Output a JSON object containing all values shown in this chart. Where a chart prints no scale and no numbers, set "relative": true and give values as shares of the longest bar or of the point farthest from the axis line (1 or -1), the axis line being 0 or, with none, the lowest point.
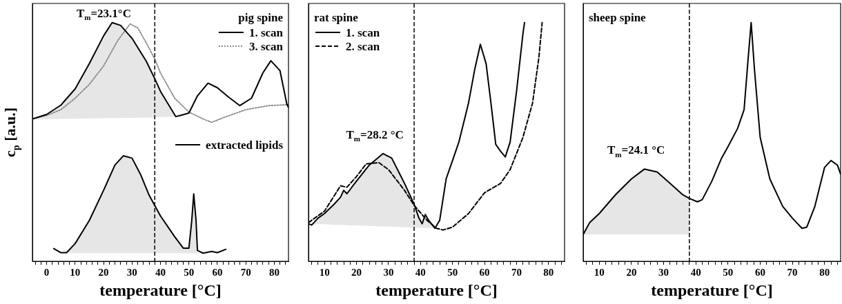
{
  "chart_data": [
    {
      "type": "line",
      "title": "pig spine",
      "ylabel": "c$_{p}$ [a.u.]",
      "xlabel": "temperature [°C]",
      "relative": true,
      "legend": "top right",
      "marker": "none",
      "tick_labels": "x",
      "xlim": [
        -5,
        85
      ],
      "xticks": [
        {
          "value": -4,
          "label": null
        },
        {
          "value": -2,
          "label": null
        },
        0,
        {
          "value": 2,
          "label": null
        },
        {
          "value": 4,
          "label": null
        },
        {
          "value": 6,
          "label": null
        },
        {
          "value": 8,
          "label": null
        },
        10,
        {
          "value": 12,
          "label": null
        },
        {
          "value": 14,
          "label": null
        },
        {
          "value": 16,
          "label": null
        },
        {
          "value": 18,
          "label": null
        },
        20,
        {
          "value": 22,
          "label": null
        },
        {
          "value": 24,
          "label": null
        },
        {
          "value": 26,
          "label": null
        },
        {
          "value": 28,
          "label": null
        },
        30,
        {
          "value": 32,
          "label": null
        },
        {
          "value": 34,
          "label": null
        },
        {
          "value": 36,
          "label": null
        },
        {
          "value": 38,
          "label": null
        },
        40,
        {
          "value": 42,
          "label": null
        },
        {
          "value": 44,
          "label": null
        },
        {
          "value": 46,
          "label": null
        },
        {
          "value": 48,
          "label": null
        },
        50,
        {
          "value": 52,
          "label": null
        },
        {
          "value": 54,
          "label": null
        },
        {
          "value": 56,
          "label": null
        },
        {
          "value": 58,
          "label": null
        },
        60,
        {
          "value": 62,
          "label": null
        },
        {
          "value": 64,
          "label": null
        },
        {
          "value": 66,
          "label": null
        },
        {
          "value": 68,
          "label": null
        },
        70,
        {
          "value": 72,
          "label": null
        },
        {
          "value": 74,
          "label": null
        },
        {
          "value": 76,
          "label": null
        },
        {
          "value": 78,
          "label": null
        },
        80,
        {
          "value": 82,
          "label": null
        },
        {
          "value": 84,
          "label": null
        }
      ],
      "ref_lines": [
        {
          "axis": "x",
          "value": 38,
          "color": "#000000",
          "line_style": "dashed"
        }
      ],
      "annotations": [
        "T$_{m}$=23.1°C"
      ],
      "series": [
        {
          "name": "1. scan",
          "color": "#000000",
          "line_style": "solid",
          "x": [
            -5,
            0,
            5,
            10,
            15,
            20,
            23,
            26,
            30,
            35,
            38,
            40,
            45.4,
            47,
            50,
            53,
            56.7,
            60,
            63.9,
            67.9,
            72,
            76,
            78.8,
            82,
            84.4,
            85
          ],
          "values": [
            0.596,
            0.615,
            0.654,
            0.722,
            0.828,
            0.944,
            1.0,
            0.988,
            0.934,
            0.838,
            0.765,
            0.712,
            0.606,
            0.611,
            0.621,
            0.693,
            0.746,
            0.727,
            0.688,
            0.652,
            0.683,
            0.789,
            0.84,
            0.799,
            0.659,
            0.644
          ],
          "lower": [
            0.594,
            0.595,
            0.596,
            0.597,
            0.598,
            0.599,
            0.6,
            0.6,
            0.601,
            0.602,
            0.603,
            0.604,
            0.606,
            null,
            null,
            null,
            null,
            null,
            null,
            null,
            null,
            null,
            null,
            null,
            null,
            null
          ],
          "upper": [
            0.596,
            0.615,
            0.654,
            0.722,
            0.828,
            0.944,
            1.0,
            0.988,
            0.934,
            0.838,
            0.765,
            0.712,
            0.606,
            null,
            null,
            null,
            null,
            null,
            null,
            null,
            null,
            null,
            null,
            null,
            null,
            null
          ]
        },
        {
          "name": "3. scan",
          "color": "#888888",
          "line_style": "dotted",
          "x": [
            -5,
            0,
            5,
            10,
            15,
            20,
            25,
            29.3,
            32,
            35,
            38,
            40,
            45,
            50,
            55,
            58,
            62,
            70,
            78,
            85
          ],
          "values": [
            0.596,
            0.611,
            0.635,
            0.683,
            0.741,
            0.818,
            0.925,
            0.994,
            0.978,
            0.915,
            0.847,
            0.789,
            0.683,
            0.625,
            0.596,
            0.582,
            0.601,
            0.635,
            0.652,
            0.656
          ]
        },
        {
          "name": "extracted lipids",
          "color": "#000000",
          "line_style": "solid",
          "x": [
            2.5,
            5,
            7,
            10,
            15,
            20,
            24,
            27,
            30,
            33,
            36,
            40,
            45,
            48,
            50,
            51,
            51.7,
            52.5,
            53,
            55,
            58,
            60,
            63
          ],
          "values": [
            0.053,
            0.036,
            0.036,
            0.074,
            0.171,
            0.297,
            0.403,
            0.442,
            0.432,
            0.364,
            0.277,
            0.19,
            0.103,
            0.055,
            0.055,
            0.171,
            0.282,
            0.171,
            0.045,
            0.034,
            0.041,
            0.036,
            0.05
          ],
          "lower": [
            null,
            0.034,
            0.034,
            0.034,
            0.034,
            0.034,
            0.034,
            0.034,
            0.034,
            0.034,
            0.034,
            0.034,
            0.034,
            0.034,
            0.034,
            0.034,
            0.034,
            0.034,
            0.034,
            null,
            null,
            null,
            null
          ],
          "upper": [
            null,
            0.036,
            0.036,
            0.074,
            0.171,
            0.297,
            0.403,
            0.442,
            0.432,
            0.364,
            0.277,
            0.19,
            0.103,
            0.055,
            0.055,
            0.171,
            0.282,
            0.171,
            0.045,
            null,
            null,
            null,
            null
          ]
        }
      ]
    },
    {
      "type": "line",
      "title": "rat spine",
      "xlabel": "temperature [°C]",
      "relative": true,
      "legend": "top left",
      "marker": "none",
      "tick_labels": "x",
      "xlim": [
        5,
        85
      ],
      "xticks": [
        {
          "value": 6,
          "label": null
        },
        {
          "value": 8,
          "label": null
        },
        10,
        {
          "value": 12,
          "label": null
        },
        {
          "value": 14,
          "label": null
        },
        {
          "value": 16,
          "label": null
        },
        {
          "value": 18,
          "label": null
        },
        20,
        {
          "value": 22,
          "label": null
        },
        {
          "value": 24,
          "label": null
        },
        {
          "value": 26,
          "label": null
        },
        {
          "value": 28,
          "label": null
        },
        30,
        {
          "value": 32,
          "label": null
        },
        {
          "value": 34,
          "label": null
        },
        {
          "value": 36,
          "label": null
        },
        {
          "value": 38,
          "label": null
        },
        40,
        {
          "value": 42,
          "label": null
        },
        {
          "value": 44,
          "label": null
        },
        {
          "value": 46,
          "label": null
        },
        {
          "value": 48,
          "label": null
        },
        50,
        {
          "value": 52,
          "label": null
        },
        {
          "value": 54,
          "label": null
        },
        {
          "value": 56,
          "label": null
        },
        {
          "value": 58,
          "label": null
        },
        60,
        {
          "value": 62,
          "label": null
        },
        {
          "value": 64,
          "label": null
        },
        {
          "value": 66,
          "label": null
        },
        {
          "value": 68,
          "label": null
        },
        70,
        {
          "value": 72,
          "label": null
        },
        {
          "value": 74,
          "label": null
        },
        {
          "value": 76,
          "label": null
        },
        {
          "value": 78,
          "label": null
        },
        80,
        {
          "value": 82,
          "label": null
        },
        {
          "value": 84,
          "label": null
        }
      ],
      "ref_lines": [
        {
          "axis": "x",
          "value": 38,
          "color": "#000000",
          "line_style": "dashed"
        }
      ],
      "annotations": [
        "T$_{m}$=28.2 °C"
      ],
      "series": [
        {
          "name": "1. scan",
          "color": "#000000",
          "line_style": "solid",
          "x": [
            5,
            6,
            8,
            10,
            13,
            15,
            16,
            17,
            20,
            24,
            28.3,
            31,
            35,
            38,
            39.5,
            40.5,
            41.5,
            42.5,
            44.5,
            46,
            48,
            50,
            52,
            55,
            57,
            58.7,
            60.5,
            62,
            63.5,
            65,
            66.5,
            68,
            70,
            72,
            72.5
          ],
          "values": [
            0.157,
            0.152,
            0.181,
            0.2,
            0.239,
            0.268,
            0.297,
            0.283,
            0.336,
            0.403,
            0.451,
            0.432,
            0.326,
            0.239,
            0.181,
            0.157,
            0.196,
            0.172,
            0.138,
            0.172,
            0.345,
            0.422,
            0.5,
            0.663,
            0.808,
            0.909,
            0.827,
            0.663,
            0.49,
            0.461,
            0.437,
            0.5,
            0.712,
            0.953,
            1.0
          ],
          "lower": [
            0.157,
            0.152,
            0.156,
            0.155,
            0.153,
            0.152,
            0.152,
            0.151,
            0.15,
            0.148,
            0.146,
            0.145,
            0.143,
            0.141,
            0.14,
            0.14,
            0.139,
            0.139,
            0.138,
            null,
            null,
            null,
            null,
            null,
            null,
            null,
            null,
            null,
            null,
            null,
            null,
            null,
            null,
            null,
            null
          ],
          "upper": [
            0.157,
            0.152,
            0.181,
            0.2,
            0.239,
            0.268,
            0.297,
            0.283,
            0.336,
            0.403,
            0.451,
            0.432,
            0.326,
            0.239,
            0.181,
            0.157,
            0.196,
            0.172,
            0.138,
            null,
            null,
            null,
            null,
            null,
            null,
            null,
            null,
            null,
            null,
            null,
            null,
            null,
            null,
            null,
            null
          ]
        },
        {
          "name": "2. scan",
          "color": "#000000",
          "line_style": "dashed",
          "x": [
            5,
            10,
            15,
            17,
            20,
            23,
            27,
            30,
            35,
            38,
            42,
            45,
            47,
            50,
            55,
            60,
            65,
            68,
            72,
            75,
            77,
            78
          ],
          "values": [
            0.162,
            0.21,
            0.316,
            0.31,
            0.355,
            0.408,
            0.413,
            0.384,
            0.297,
            0.234,
            0.172,
            0.138,
            0.131,
            0.143,
            0.2,
            0.287,
            0.326,
            0.384,
            0.519,
            0.663,
            0.856,
            1.0
          ]
        }
      ]
    },
    {
      "type": "line",
      "title": "sheep spine",
      "xlabel": "temperature [°C]",
      "relative": true,
      "marker": "none",
      "tick_labels": "x",
      "xlim": [
        5,
        85
      ],
      "xticks": [
        {
          "value": 6,
          "label": null
        },
        {
          "value": 8,
          "label": null
        },
        10,
        {
          "value": 12,
          "label": null
        },
        {
          "value": 14,
          "label": null
        },
        {
          "value": 16,
          "label": null
        },
        {
          "value": 18,
          "label": null
        },
        20,
        {
          "value": 22,
          "label": null
        },
        {
          "value": 24,
          "label": null
        },
        {
          "value": 26,
          "label": null
        },
        {
          "value": 28,
          "label": null
        },
        30,
        {
          "value": 32,
          "label": null
        },
        {
          "value": 34,
          "label": null
        },
        {
          "value": 36,
          "label": null
        },
        {
          "value": 38,
          "label": null
        },
        40,
        {
          "value": 42,
          "label": null
        },
        {
          "value": 44,
          "label": null
        },
        {
          "value": 46,
          "label": null
        },
        {
          "value": 48,
          "label": null
        },
        50,
        {
          "value": 52,
          "label": null
        },
        {
          "value": 54,
          "label": null
        },
        {
          "value": 56,
          "label": null
        },
        {
          "value": 58,
          "label": null
        },
        60,
        {
          "value": 62,
          "label": null
        },
        {
          "value": 64,
          "label": null
        },
        {
          "value": 66,
          "label": null
        },
        {
          "value": 68,
          "label": null
        },
        70,
        {
          "value": 72,
          "label": null
        },
        {
          "value": 74,
          "label": null
        },
        {
          "value": 76,
          "label": null
        },
        {
          "value": 78,
          "label": null
        },
        80,
        {
          "value": 82,
          "label": null
        },
        {
          "value": 84,
          "label": null
        }
      ],
      "ref_lines": [
        {
          "axis": "x",
          "value": 38,
          "color": "#000000",
          "line_style": "dashed"
        }
      ],
      "annotations": [
        "T$_{m}$=24.1 °C"
      ],
      "series": [
        {
          "color": "#000000",
          "line_style": "solid",
          "x": [
            5,
            7,
            10,
            15,
            20,
            24,
            28,
            32,
            36,
            38,
            40.5,
            42,
            45,
            48,
            50,
            53,
            55,
            56.3,
            57.2,
            58.2,
            60,
            63,
            67,
            70,
            73,
            74.5,
            77,
            80,
            82,
            84,
            85
          ],
          "values": [
            0.112,
            0.162,
            0.2,
            0.278,
            0.345,
            0.386,
            0.374,
            0.326,
            0.278,
            0.263,
            0.249,
            0.258,
            0.336,
            0.432,
            0.48,
            0.557,
            0.635,
            0.856,
            1.0,
            0.808,
            0.519,
            0.345,
            0.23,
            0.181,
            0.138,
            0.143,
            0.23,
            0.393,
            0.422,
            0.403,
            0.365
          ],
          "lower": [
            0.112,
            0.112,
            0.112,
            0.112,
            0.112,
            0.112,
            0.112,
            0.112,
            0.112,
            0.112,
            null,
            null,
            null,
            null,
            null,
            null,
            null,
            null,
            null,
            null,
            null,
            null,
            null,
            null,
            null,
            null,
            null,
            null,
            null,
            null,
            null
          ],
          "upper": [
            0.112,
            0.162,
            0.2,
            0.278,
            0.345,
            0.386,
            0.374,
            0.326,
            0.278,
            0.263,
            null,
            null,
            null,
            null,
            null,
            null,
            null,
            null,
            null,
            null,
            null,
            null,
            null,
            null,
            null,
            null,
            null,
            null,
            null,
            null,
            null
          ]
        }
      ]
    }
  ]
}
